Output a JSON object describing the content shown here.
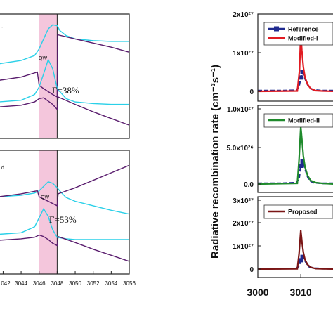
{
  "chart_data": [
    {
      "type": "line",
      "panel": "left-top",
      "title_fragment": "-I",
      "band_label": "QW",
      "annotation": "Γ=38%",
      "shaded_band": [
        3046,
        3048
      ],
      "xlim": [
        3041.5,
        3056
      ],
      "series": [
        {
          "color": "#2ad0e8",
          "x": [
            3041.5,
            3044,
            3045.5,
            3046,
            3046.5,
            3047,
            3047.5,
            3048,
            3048.3,
            3049,
            3050,
            3052,
            3054,
            3056
          ],
          "y": [
            0.5,
            0.54,
            0.6,
            0.68,
            0.8,
            0.92,
            0.97,
            0.96,
            0.9,
            0.84,
            0.8,
            0.78,
            0.77,
            0.77
          ]
        },
        {
          "color": "#5a1d6e",
          "x": [
            3041.5,
            3044,
            3045.8,
            3046,
            3046.5,
            3047.5,
            3048,
            3048.05,
            3050,
            3052,
            3054,
            3056
          ],
          "y": [
            0.3,
            0.34,
            0.4,
            0.24,
            0.2,
            0.13,
            0.1,
            0.85,
            0.8,
            0.75,
            0.7,
            0.64
          ]
        },
        {
          "color": "#2ad0e8",
          "x": [
            3041.5,
            3044,
            3045.5,
            3046,
            3046.5,
            3047,
            3047.5,
            3048,
            3049,
            3050,
            3052,
            3054,
            3056
          ],
          "y": [
            0.04,
            0.06,
            0.13,
            0.22,
            0.38,
            0.55,
            0.44,
            0.2,
            0.08,
            0.04,
            0.02,
            0.01,
            0.01
          ]
        },
        {
          "color": "#5a1d6e",
          "x": [
            3041.5,
            3044,
            3045.5,
            3046,
            3046.5,
            3047,
            3047.5,
            3048,
            3048.1,
            3050,
            3052,
            3054,
            3056
          ],
          "y": [
            -0.02,
            0.0,
            0.04,
            0.08,
            0.09,
            0.05,
            0.01,
            -0.05,
            0.1,
            0.01,
            -0.08,
            -0.16,
            -0.24
          ]
        }
      ]
    },
    {
      "type": "line",
      "panel": "left-bottom",
      "title_fragment": "d",
      "band_label": "QW",
      "annotation": "Γ=53%",
      "shaded_band": [
        3046,
        3048
      ],
      "xlim": [
        3041.5,
        3056
      ],
      "xticks": [
        "042",
        "3044",
        "3046",
        "3048",
        "3050",
        "3052",
        "3054",
        "3056"
      ],
      "series": [
        {
          "color": "#2ad0e8",
          "x": [
            3041.5,
            3044,
            3045.5,
            3046,
            3046.5,
            3047,
            3047.5,
            3048,
            3048.5,
            3049,
            3050,
            3052,
            3054,
            3056
          ],
          "y": [
            0.58,
            0.6,
            0.63,
            0.66,
            0.72,
            0.78,
            0.76,
            0.7,
            0.63,
            0.57,
            0.52,
            0.46,
            0.4,
            0.35
          ]
        },
        {
          "color": "#5a1d6e",
          "x": [
            3041.5,
            3044,
            3045.8,
            3046,
            3047,
            3048,
            3048.1,
            3050,
            3052,
            3054,
            3056
          ],
          "y": [
            0.58,
            0.62,
            0.66,
            0.58,
            0.52,
            0.46,
            0.62,
            0.7,
            0.8,
            0.9,
            1.0
          ]
        },
        {
          "color": "#2ad0e8",
          "x": [
            3041.5,
            3044,
            3045.5,
            3046,
            3046.5,
            3047,
            3047.5,
            3048,
            3049,
            3050,
            3052,
            3054,
            3056
          ],
          "y": [
            0.08,
            0.1,
            0.18,
            0.3,
            0.42,
            0.32,
            0.14,
            0.04,
            0.02,
            0.01,
            0.01,
            0.01,
            0.01
          ]
        },
        {
          "color": "#5a1d6e",
          "x": [
            3041.5,
            3044,
            3045.5,
            3046,
            3046.5,
            3047,
            3047.5,
            3048,
            3048.1,
            3050,
            3052,
            3054,
            3056
          ],
          "y": [
            0.0,
            0.02,
            0.04,
            0.07,
            0.05,
            0.01,
            -0.04,
            -0.07,
            0.05,
            -0.03,
            -0.12,
            -0.2,
            -0.28
          ]
        }
      ]
    },
    {
      "type": "line",
      "panel": "right-top",
      "ylabel": "Radiative recombination rate (cm⁻³s⁻¹)",
      "yticks": [
        "0",
        "1x10²⁷",
        "2x10²⁷"
      ],
      "ylim": [
        0,
        2.2
      ],
      "xlim": [
        3000,
        3018
      ],
      "legend": [
        "Reference",
        "Modified-I"
      ],
      "series": [
        {
          "name": "Reference",
          "color": "#1f2a8f",
          "marker": "square",
          "x": [
            3000,
            3005,
            3009,
            3009.6,
            3010,
            3010.4,
            3010.9,
            3011.5,
            3012,
            3013,
            3015,
            3018
          ],
          "y": [
            0.02,
            0.02,
            0.03,
            0.15,
            0.4,
            0.55,
            0.4,
            0.22,
            0.1,
            0.04,
            0.02,
            0.02
          ]
        },
        {
          "name": "Modified-I",
          "color": "#e11b22",
          "x": [
            3000,
            3009.2,
            3009.7,
            3010,
            3010.25,
            3010.6,
            3011,
            3011.6,
            3012.3,
            3013.5,
            3015,
            3018
          ],
          "y": [
            0.0,
            0.01,
            0.6,
            1.7,
            1.2,
            0.7,
            0.4,
            0.2,
            0.08,
            0.02,
            0.01,
            0.0
          ]
        }
      ]
    },
    {
      "type": "line",
      "panel": "right-middle",
      "yticks": [
        "0.0",
        "5.0x10²⁶",
        "1.0x10²⁷"
      ],
      "ylim": [
        0,
        1.1
      ],
      "xlim": [
        3000,
        3018
      ],
      "legend": [
        "Modified-II"
      ],
      "series": [
        {
          "name": "Reference",
          "color": "#1f2a8f",
          "marker": "square",
          "x": [
            3000,
            3005,
            3009,
            3009.6,
            3010,
            3010.4,
            3010.9,
            3011.5,
            3012,
            3013,
            3015,
            3018
          ],
          "y": [
            0.01,
            0.01,
            0.02,
            0.08,
            0.26,
            0.32,
            0.24,
            0.12,
            0.05,
            0.02,
            0.01,
            0.01
          ]
        },
        {
          "name": "Modified-II",
          "color": "#1f8a2c",
          "x": [
            3000,
            3009.2,
            3009.6,
            3010,
            3010.3,
            3010.6,
            3011,
            3011.6,
            3012.3,
            3013.5,
            3015,
            3018
          ],
          "y": [
            0.0,
            0.01,
            0.35,
            0.82,
            0.62,
            0.4,
            0.24,
            0.12,
            0.05,
            0.02,
            0.01,
            0.0
          ]
        }
      ]
    },
    {
      "type": "line",
      "panel": "right-bottom",
      "yticks": [
        "0",
        "1x10²⁷",
        "2x10²⁷",
        "3x10²⁷"
      ],
      "ylim": [
        0,
        3.2
      ],
      "xlim": [
        3000,
        3018
      ],
      "xticks": [
        "3000",
        "3010"
      ],
      "legend": [
        "Proposed"
      ],
      "series": [
        {
          "name": "Reference",
          "color": "#1f2a8f",
          "marker": "square",
          "x": [
            3000,
            3005,
            3009,
            3009.6,
            3010,
            3010.4,
            3010.9,
            3011.5,
            3012,
            3013,
            3015,
            3018
          ],
          "y": [
            0.02,
            0.02,
            0.03,
            0.15,
            0.4,
            0.55,
            0.4,
            0.22,
            0.1,
            0.04,
            0.02,
            0.02
          ]
        },
        {
          "name": "Proposed",
          "color": "#7a1515",
          "x": [
            3000,
            3009.2,
            3009.6,
            3010,
            3010.3,
            3010.6,
            3011,
            3011.6,
            3012.3,
            3013.5,
            3015,
            3018
          ],
          "y": [
            0.0,
            0.01,
            0.7,
            1.75,
            1.2,
            0.75,
            0.42,
            0.2,
            0.08,
            0.02,
            0.01,
            0.0
          ]
        }
      ]
    }
  ]
}
